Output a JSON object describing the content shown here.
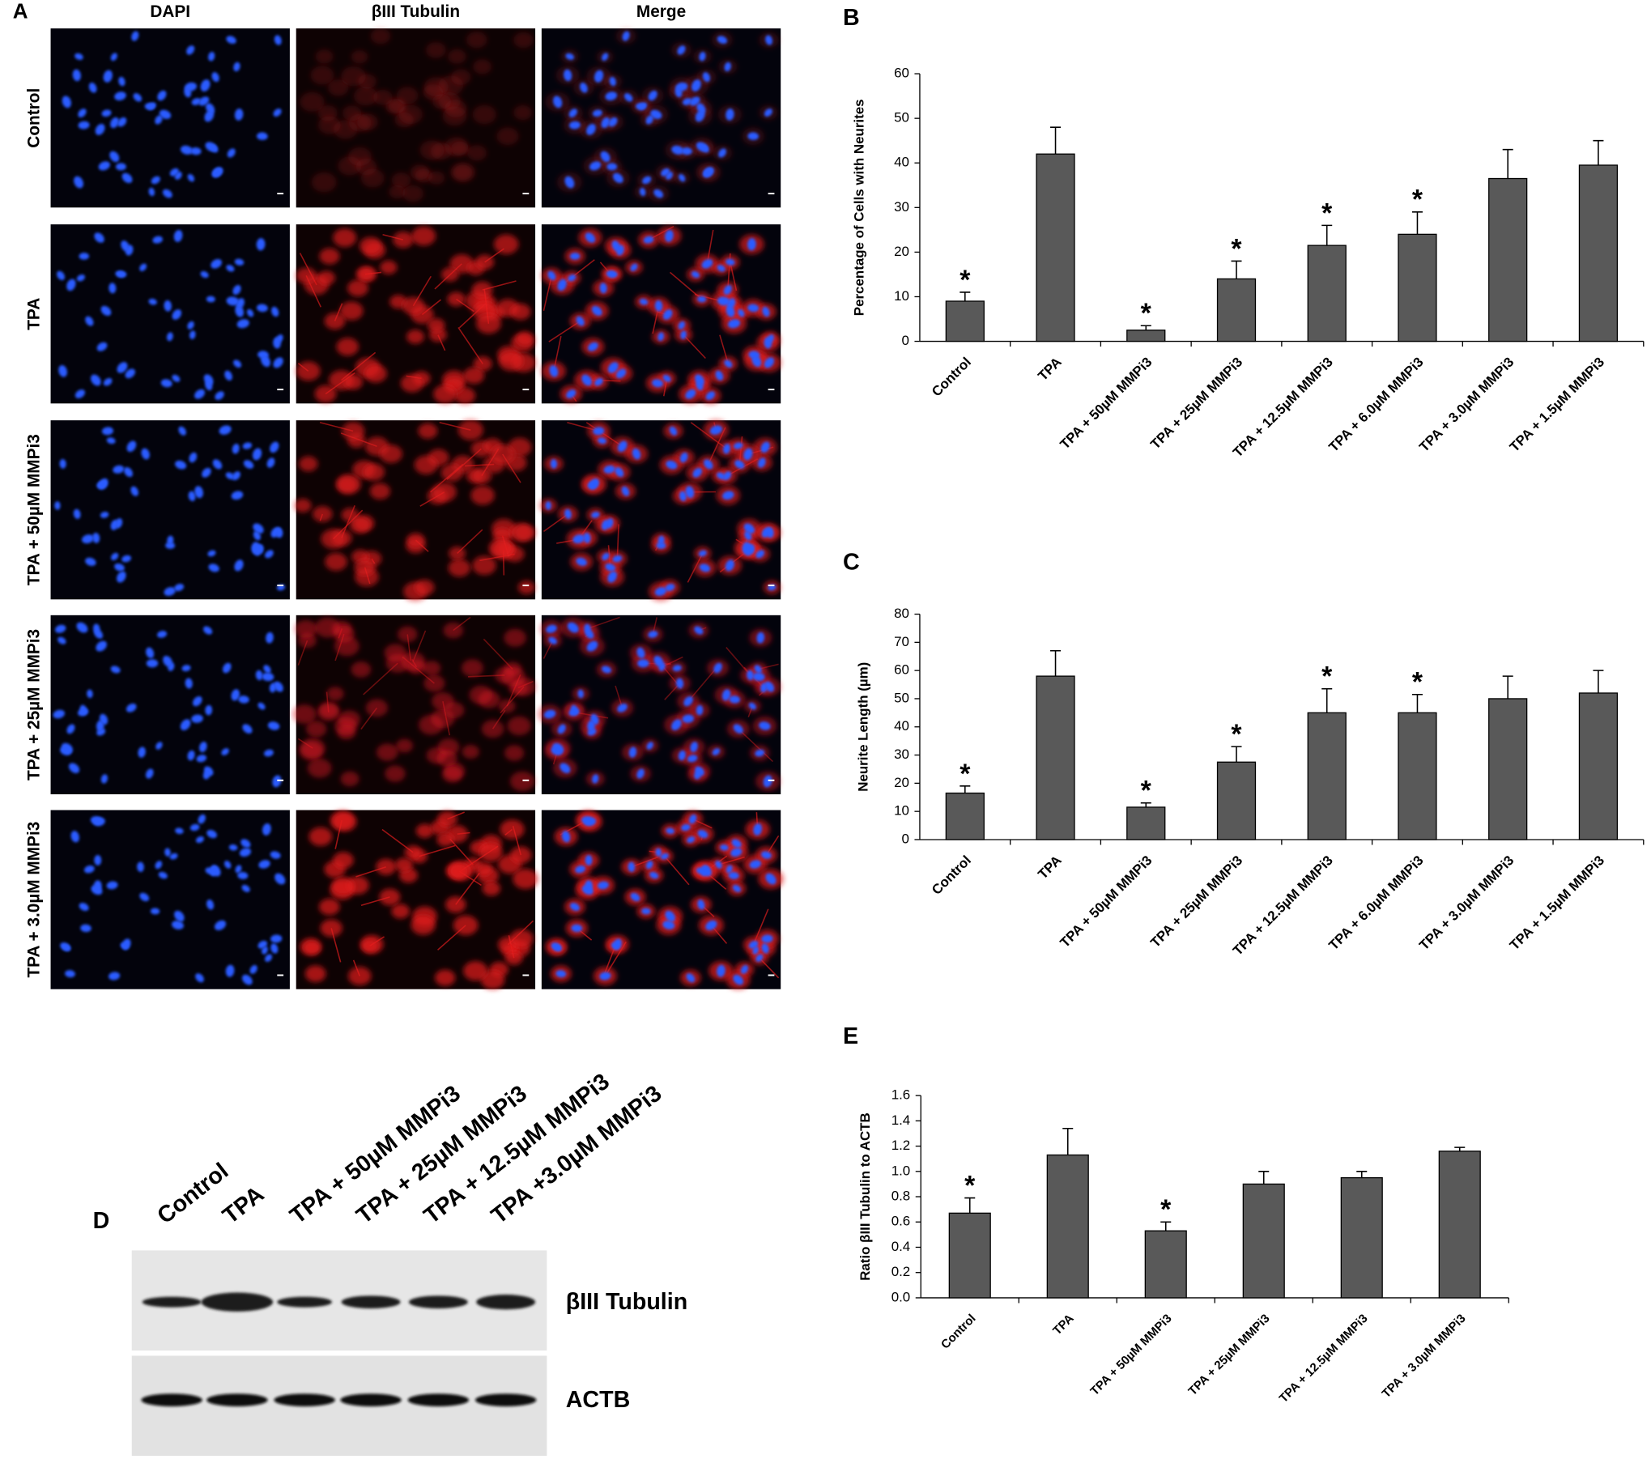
{
  "panel_a": {
    "label": "A",
    "columns": [
      "DAPI",
      "βIII Tubulin",
      "Merge"
    ],
    "rows": [
      "Control",
      "TPA",
      "TPA + 50µM MMPi3",
      "TPA + 25µM MMPi3",
      "TPA + 3.0µM MMPi3"
    ]
  },
  "panel_d": {
    "label": "D",
    "lanes": [
      "Control",
      "TPA",
      "TPA + 50µM MMPi3",
      "TPA + 25µM MMPi3",
      "TPA + 12.5µM MMPi3",
      "TPA +3.0µM MMPi3"
    ],
    "bands": [
      "βIII Tubulin",
      "ACTB"
    ]
  },
  "chart_data": [
    {
      "type": "bar",
      "panel": "B",
      "ylabel": "Percentage of Cells with Neurites",
      "color": "#595959",
      "categories": [
        "Control",
        "TPA",
        "TPA + 50µM MMPi3",
        "TPA + 25µM MMPi3",
        "TPA + 12.5µM MMPi3",
        "TPA + 6.0µM MMPi3",
        "TPA + 3.0µM MMPi3",
        "TPA + 1.5µM MMPi3"
      ],
      "values": [
        9,
        42,
        2.5,
        14,
        21.5,
        24,
        36.5,
        39.5
      ],
      "errors": [
        2,
        6,
        1,
        4,
        4.5,
        5,
        6.5,
        5.5
      ],
      "significance": [
        "*",
        null,
        "*",
        "*",
        "*",
        "*",
        null,
        null
      ],
      "ylim": [
        0,
        60
      ],
      "yticks": [
        0,
        10,
        20,
        30,
        40,
        50,
        60
      ]
    },
    {
      "type": "bar",
      "panel": "C",
      "ylabel": "Neurite Length (µm)",
      "color": "#595959",
      "categories": [
        "Control",
        "TPA",
        "TPA + 50µM MMPi3",
        "TPA + 25µM MMPi3",
        "TPA + 12.5µM MMPi3",
        "TPA + 6.0µM MMPi3",
        "TPA + 3.0µM MMPi3",
        "TPA + 1.5µM MMPi3"
      ],
      "values": [
        16.5,
        58,
        11.5,
        27.5,
        45,
        45,
        50,
        52
      ],
      "errors": [
        2.5,
        9,
        1.5,
        5.5,
        8.5,
        6.5,
        8,
        8
      ],
      "significance": [
        "*",
        null,
        "*",
        "*",
        "*",
        "*",
        null,
        null
      ],
      "ylim": [
        0,
        80
      ],
      "yticks": [
        0,
        10,
        20,
        30,
        40,
        50,
        60,
        70,
        80
      ]
    },
    {
      "type": "bar",
      "panel": "E",
      "ylabel": "Ratio βIII Tubulin to ACTB",
      "color": "#595959",
      "categories": [
        "Control",
        "TPA",
        "TPA + 50µM MMPi3",
        "TPA + 25µM MMPi3",
        "TPA + 12.5µM MMPi3",
        "TPA + 3.0µM MMPi3"
      ],
      "values": [
        0.67,
        1.13,
        0.53,
        0.9,
        0.95,
        1.16
      ],
      "errors": [
        0.12,
        0.21,
        0.07,
        0.1,
        0.05,
        0.03
      ],
      "significance": [
        "*",
        null,
        "*",
        null,
        null,
        null
      ],
      "ylim": [
        0,
        1.6
      ],
      "yticks": [
        {
          "value": 0,
          "label": "0.0"
        },
        0.2,
        0.4,
        0.6,
        0.8,
        {
          "value": 1,
          "label": "1.0"
        },
        1.2,
        1.4,
        1.6
      ]
    }
  ]
}
